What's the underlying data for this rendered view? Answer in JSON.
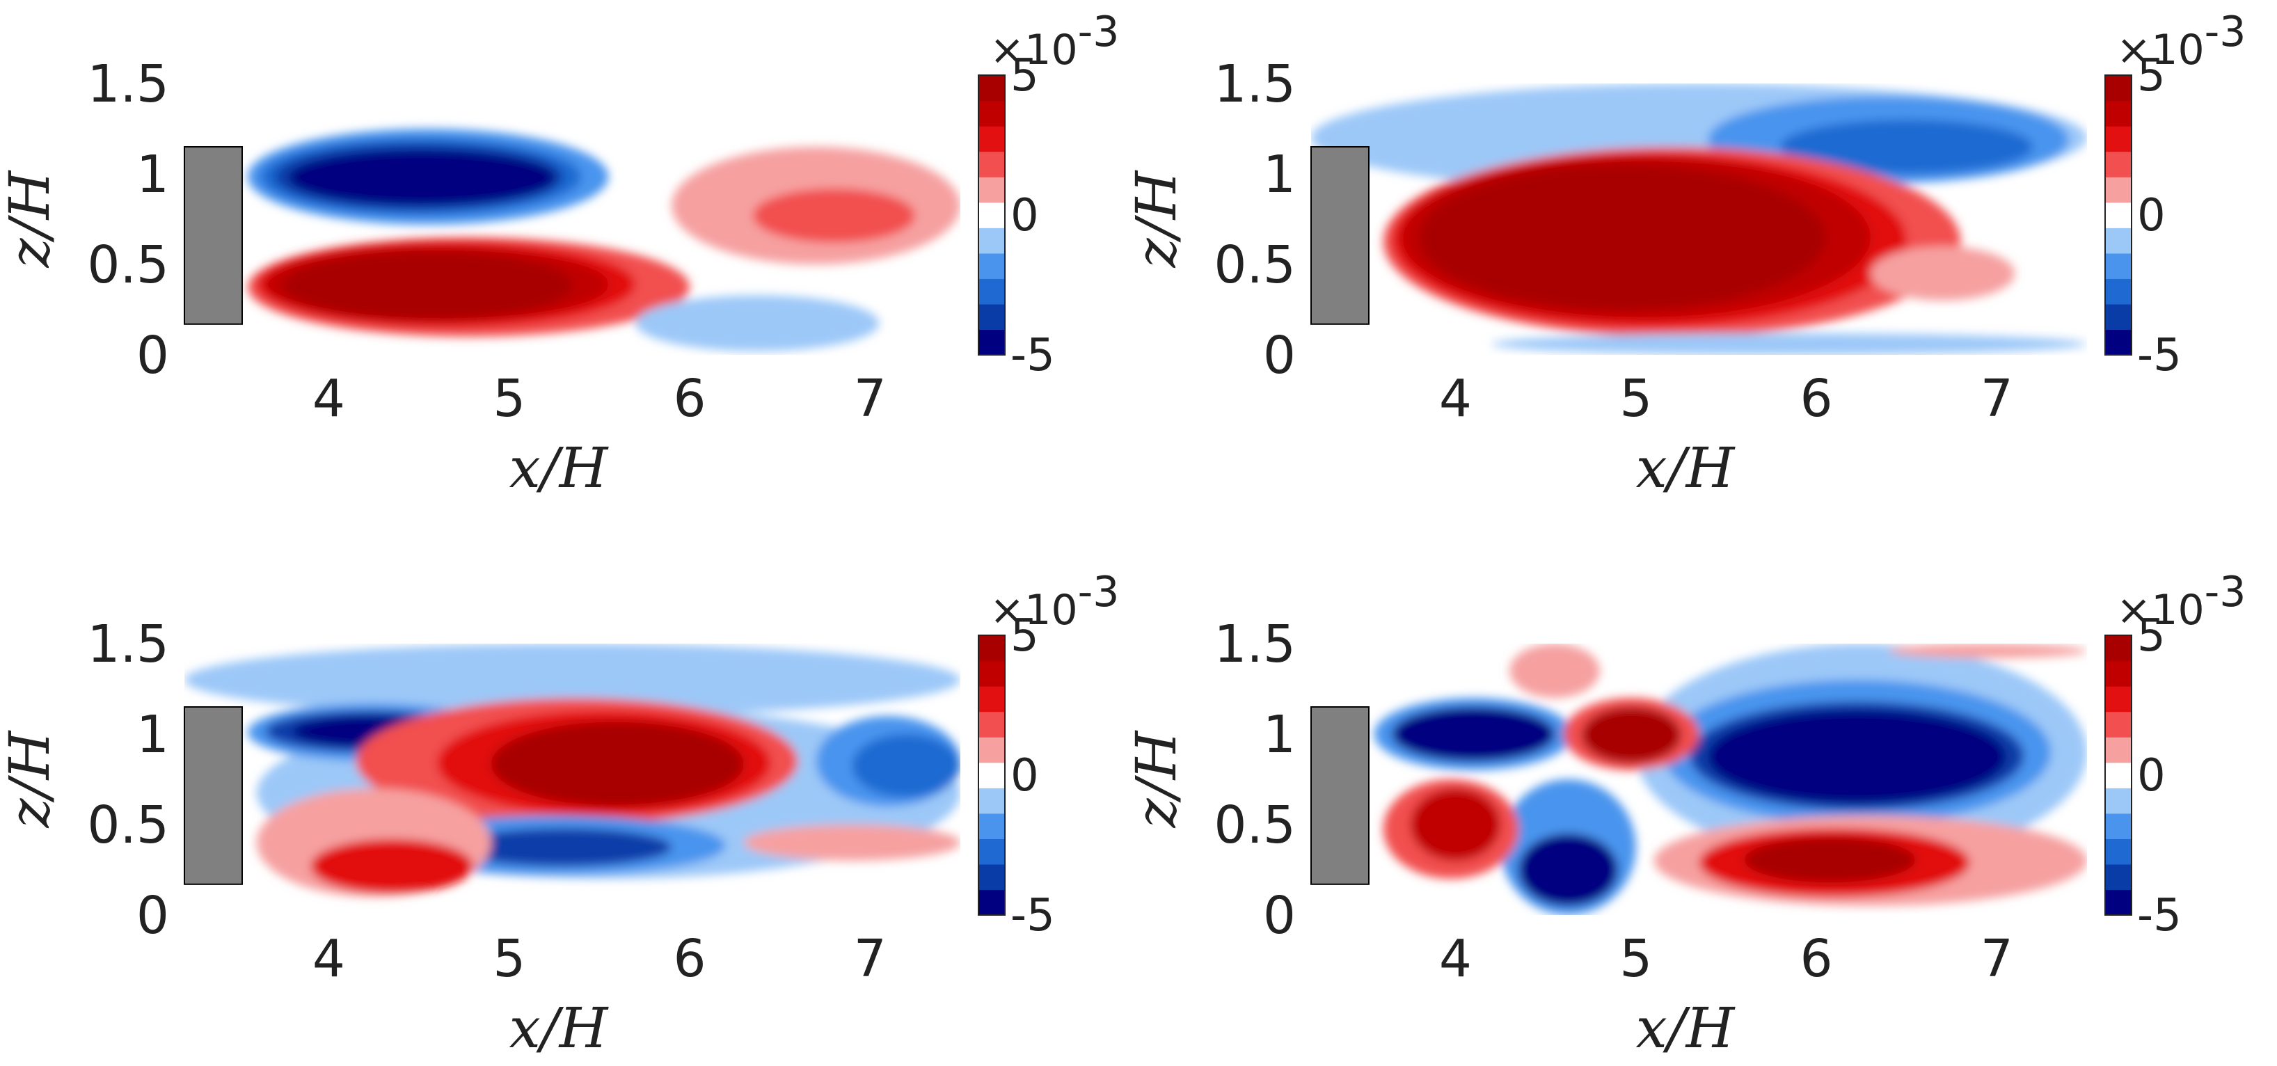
{
  "chart_data": {
    "type": "heatmap",
    "layout": "2x2",
    "shared": {
      "xlabel": "x/H",
      "ylabel": "z/H",
      "xlim": [
        3.2,
        7.5
      ],
      "ylim": [
        0,
        1.5
      ],
      "xticks": [
        "4",
        "5",
        "6",
        "7"
      ],
      "yticks": [
        "0",
        "0.5",
        "1",
        "1.5"
      ],
      "colorbar": {
        "range": [
          -5,
          5
        ],
        "multiplier": "×10",
        "exponent": "-3",
        "ticks": [
          "-5",
          "0",
          "5"
        ],
        "colormap": [
          "#000080",
          "#0a3ca8",
          "#1e6ad2",
          "#4a94ee",
          "#9cc8f8",
          "#ffffff",
          "#f6a0a0",
          "#f25050",
          "#e21010",
          "#c00000",
          "#a80000"
        ]
      },
      "obstacle": {
        "x": [
          3.2,
          3.52
        ],
        "z": [
          0.17,
          1.15
        ],
        "color": "#808080"
      }
    },
    "panels": [
      {
        "id": "top-left",
        "regions": [
          {
            "level": -2,
            "x": [
              3.55,
              5.55
            ],
            "z": [
              0.72,
              1.25
            ]
          },
          {
            "level": -3,
            "x": [
              3.62,
              5.4
            ],
            "z": [
              0.77,
              1.2
            ]
          },
          {
            "level": -4,
            "x": [
              3.7,
              5.3
            ],
            "z": [
              0.8,
              1.17
            ]
          },
          {
            "level": -5,
            "x": [
              3.78,
              5.25
            ],
            "z": [
              0.83,
              1.13
            ]
          },
          {
            "level": 2,
            "x": [
              3.55,
              6.0
            ],
            "z": [
              0.1,
              0.65
            ]
          },
          {
            "level": 3,
            "x": [
              3.6,
              5.7
            ],
            "z": [
              0.15,
              0.63
            ]
          },
          {
            "level": 4,
            "x": [
              3.65,
              5.55
            ],
            "z": [
              0.18,
              0.6
            ]
          },
          {
            "level": 5,
            "x": [
              3.75,
              5.35
            ],
            "z": [
              0.2,
              0.57
            ]
          },
          {
            "level": 1,
            "x": [
              5.9,
              7.5
            ],
            "z": [
              0.5,
              1.15
            ]
          },
          {
            "level": 2,
            "x": [
              6.35,
              7.25
            ],
            "z": [
              0.62,
              0.92
            ]
          },
          {
            "level": -1,
            "x": [
              5.7,
              7.05
            ],
            "z": [
              0.02,
              0.33
            ]
          }
        ]
      },
      {
        "id": "top-right",
        "regions": [
          {
            "level": -1,
            "x": [
              3.2,
              7.5
            ],
            "z": [
              0.9,
              1.5
            ]
          },
          {
            "level": -2,
            "x": [
              5.4,
              7.4
            ],
            "z": [
              0.95,
              1.43
            ]
          },
          {
            "level": -3,
            "x": [
              5.8,
              7.2
            ],
            "z": [
              1.0,
              1.3
            ]
          },
          {
            "level": 2,
            "x": [
              3.6,
              6.8
            ],
            "z": [
              0.1,
              1.15
            ]
          },
          {
            "level": 3,
            "x": [
              3.65,
              6.5
            ],
            "z": [
              0.15,
              1.12
            ]
          },
          {
            "level": 4,
            "x": [
              3.7,
              6.3
            ],
            "z": [
              0.2,
              1.1
            ]
          },
          {
            "level": 5,
            "x": [
              3.8,
              6.05
            ],
            "z": [
              0.25,
              1.05
            ]
          },
          {
            "level": 1,
            "x": [
              6.3,
              7.1
            ],
            "z": [
              0.3,
              0.6
            ]
          },
          {
            "level": -1,
            "x": [
              4.2,
              7.5
            ],
            "z": [
              0.0,
              0.12
            ]
          }
        ]
      },
      {
        "id": "bottom-left",
        "regions": [
          {
            "level": -1,
            "x": [
              3.2,
              7.5
            ],
            "z": [
              1.1,
              1.5
            ]
          },
          {
            "level": -1,
            "x": [
              3.6,
              7.5
            ],
            "z": [
              0.2,
              1.15
            ]
          },
          {
            "level": -2,
            "x": [
              3.55,
              4.95
            ],
            "z": [
              0.85,
              1.17
            ]
          },
          {
            "level": -4,
            "x": [
              3.65,
              4.8
            ],
            "z": [
              0.9,
              1.13
            ]
          },
          {
            "level": -5,
            "x": [
              3.8,
              4.7
            ],
            "z": [
              0.93,
              1.1
            ]
          },
          {
            "level": 2,
            "x": [
              4.15,
              6.6
            ],
            "z": [
              0.5,
              1.2
            ]
          },
          {
            "level": 3,
            "x": [
              4.6,
              6.45
            ],
            "z": [
              0.55,
              1.13
            ]
          },
          {
            "level": 5,
            "x": [
              4.9,
              6.3
            ],
            "z": [
              0.6,
              1.07
            ]
          },
          {
            "level": -2,
            "x": [
              4.3,
              6.2
            ],
            "z": [
              0.22,
              0.55
            ]
          },
          {
            "level": -4,
            "x": [
              4.7,
              5.9
            ],
            "z": [
              0.27,
              0.48
            ]
          },
          {
            "level": 1,
            "x": [
              3.6,
              4.9
            ],
            "z": [
              0.1,
              0.7
            ]
          },
          {
            "level": 3,
            "x": [
              3.9,
              4.8
            ],
            "z": [
              0.12,
              0.42
            ]
          },
          {
            "level": -2,
            "x": [
              6.7,
              7.5
            ],
            "z": [
              0.6,
              1.1
            ]
          },
          {
            "level": -3,
            "x": [
              6.9,
              7.5
            ],
            "z": [
              0.65,
              1.0
            ]
          },
          {
            "level": 1,
            "x": [
              6.3,
              7.5
            ],
            "z": [
              0.3,
              0.5
            ]
          }
        ]
      },
      {
        "id": "bottom-right",
        "regions": [
          {
            "level": -1,
            "x": [
              5.0,
              7.5
            ],
            "z": [
              0.3,
              1.5
            ]
          },
          {
            "level": -2,
            "x": [
              5.15,
              7.3
            ],
            "z": [
              0.5,
              1.3
            ]
          },
          {
            "level": -4,
            "x": [
              5.3,
              7.15
            ],
            "z": [
              0.58,
              1.18
            ]
          },
          {
            "level": -5,
            "x": [
              5.4,
              7.05
            ],
            "z": [
              0.62,
              1.13
            ]
          },
          {
            "level": -2,
            "x": [
              3.55,
              4.65
            ],
            "z": [
              0.8,
              1.2
            ]
          },
          {
            "level": -5,
            "x": [
              3.65,
              4.55
            ],
            "z": [
              0.85,
              1.15
            ]
          },
          {
            "level": -2,
            "x": [
              4.25,
              5.0
            ],
            "z": [
              0.0,
              0.75
            ]
          },
          {
            "level": -5,
            "x": [
              4.35,
              4.9
            ],
            "z": [
              0.05,
              0.45
            ]
          },
          {
            "level": 2,
            "x": [
              4.6,
              5.35
            ],
            "z": [
              0.8,
              1.2
            ]
          },
          {
            "level": 5,
            "x": [
              4.7,
              5.25
            ],
            "z": [
              0.84,
              1.15
            ]
          },
          {
            "level": 2,
            "x": [
              3.6,
              4.35
            ],
            "z": [
              0.2,
              0.75
            ]
          },
          {
            "level": 4,
            "x": [
              3.75,
              4.25
            ],
            "z": [
              0.3,
              0.7
            ]
          },
          {
            "level": 1,
            "x": [
              5.1,
              7.5
            ],
            "z": [
              0.05,
              0.55
            ]
          },
          {
            "level": 3,
            "x": [
              5.35,
              6.85
            ],
            "z": [
              0.1,
              0.48
            ]
          },
          {
            "level": 5,
            "x": [
              5.6,
              6.55
            ],
            "z": [
              0.18,
              0.43
            ]
          },
          {
            "level": 1,
            "x": [
              4.3,
              4.8
            ],
            "z": [
              1.2,
              1.5
            ]
          },
          {
            "level": 1,
            "x": [
              6.4,
              7.5
            ],
            "z": [
              1.42,
              1.5
            ]
          }
        ]
      }
    ]
  }
}
